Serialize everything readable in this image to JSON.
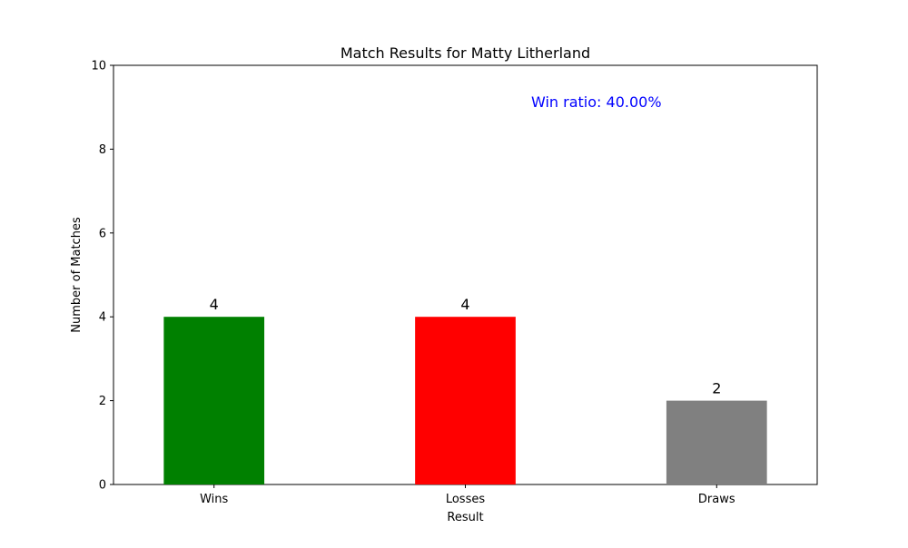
{
  "chart_data": {
    "type": "bar",
    "title": "Match Results for Matty Litherland",
    "xlabel": "Result",
    "ylabel": "Number of Matches",
    "categories": [
      "Wins",
      "Losses",
      "Draws"
    ],
    "values": [
      4,
      4,
      2
    ],
    "value_labels": [
      "4",
      "4",
      "2"
    ],
    "bar_colors": [
      "#008000",
      "#ff0000",
      "#808080"
    ],
    "ylim": [
      0,
      10
    ],
    "yticks": [
      0,
      2,
      4,
      6,
      8,
      10
    ],
    "ytick_labels": [
      "0",
      "2",
      "4",
      "6",
      "8",
      "10"
    ],
    "annotation": {
      "text": "Win ratio: 40.00%",
      "color": "#0000ff"
    },
    "grid": false,
    "legend": "none"
  }
}
